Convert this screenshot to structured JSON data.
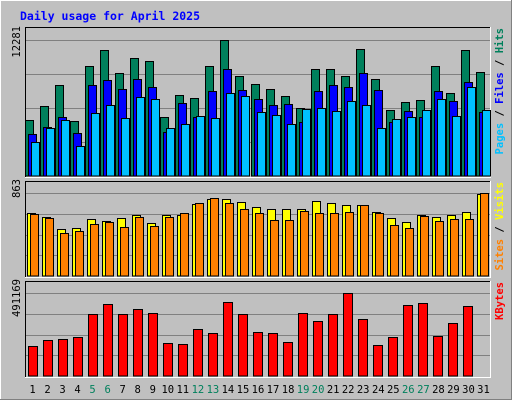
{
  "chart_data": {
    "type": "bar",
    "title": "Daily usage for April 2025",
    "colors": {
      "hits": "#00805c",
      "files": "#0000ff",
      "pages": "#00c0ff",
      "visits": "#ffff00",
      "sites": "#ff8000",
      "kbytes": "#ff0000",
      "weekend_label": "#00805c",
      "weekday_label": "#000000",
      "title": "#0000ff",
      "plot_bg": "#c0c0c0",
      "grid": "#808080"
    },
    "categories": [
      "1",
      "2",
      "3",
      "4",
      "5",
      "6",
      "7",
      "8",
      "9",
      "10",
      "11",
      "12",
      "13",
      "14",
      "15",
      "16",
      "17",
      "18",
      "19",
      "20",
      "21",
      "22",
      "23",
      "24",
      "25",
      "26",
      "27",
      "28",
      "29",
      "30",
      "31"
    ],
    "weekend_days": [
      "5",
      "6",
      "12",
      "13",
      "19",
      "20",
      "26",
      "27"
    ],
    "panels": [
      {
        "id": "requests",
        "side_labels": [
          {
            "text": "Pages",
            "color": "#00c0ff"
          },
          {
            "text": " / ",
            "color": "#000000"
          },
          {
            "text": "Files",
            "color": "#0000ff"
          },
          {
            "text": " / ",
            "color": "#000000"
          },
          {
            "text": "Hits",
            "color": "#00805c"
          }
        ],
        "max_label": "12281",
        "ymax": 12281,
        "series": [
          {
            "name": "Hits",
            "key": "hits",
            "values": [
              5100,
              6300,
              8200,
              5000,
              9900,
              11350,
              9300,
              10650,
              10350,
              5300,
              7300,
              7050,
              9900,
              12281,
              9000,
              8300,
              7900,
              7250,
              6150,
              9700,
              9700,
              9050,
              11450,
              8800,
              6000,
              6650,
              6900,
              9900,
              7450,
              11400,
              9350
            ]
          },
          {
            "name": "Files",
            "key": "files",
            "values": [
              3800,
              4400,
              5300,
              3900,
              8250,
              8700,
              7900,
              8750,
              8050,
              4000,
              6550,
              5300,
              7650,
              9700,
              7800,
              6950,
              6400,
              6500,
              4900,
              7700,
              8250,
              8000,
              9300,
              7800,
              4900,
              5900,
              5300,
              7650,
              6750,
              8500,
              5800
            ]
          },
          {
            "name": "Pages",
            "key": "pages",
            "values": [
              3050,
              4350,
              5050,
              2700,
              5700,
              6400,
              5200,
              7100,
              6950,
              4300,
              4700,
              5450,
              5250,
              7450,
              7250,
              5800,
              5550,
              4700,
              6050,
              6100,
              5900,
              6800,
              6450,
              4300,
              5150,
              5350,
              6000,
              6950,
              5400,
              8000,
              6000
            ]
          }
        ]
      },
      {
        "id": "visits",
        "side_labels": [
          {
            "text": "Sites",
            "color": "#ff8000"
          },
          {
            "text": " / ",
            "color": "#000000"
          },
          {
            "text": "Visits",
            "color": "#ffff00"
          }
        ],
        "max_label": "863",
        "ymax": 863,
        "series": [
          {
            "name": "Visits",
            "key": "visits",
            "values": [
              660,
              610,
              490,
              500,
              595,
              575,
              600,
              630,
              555,
              630,
              630,
              750,
              800,
              800,
              770,
              720,
              700,
              700,
              700,
              775,
              760,
              740,
              740,
              670,
              600,
              560,
              635,
              610,
              635,
              670,
              855
            ]
          },
          {
            "name": "Sites",
            "key": "sites",
            "values": [
              645,
              600,
              450,
              470,
              540,
              565,
              510,
              610,
              525,
              610,
              655,
              755,
              810,
              760,
              695,
              650,
              585,
              580,
              680,
              660,
              650,
              665,
              740,
              650,
              530,
              500,
              625,
              570,
              590,
              590,
              863
            ]
          }
        ]
      },
      {
        "id": "kbytes",
        "side_labels": [
          {
            "text": "KBytes",
            "color": "#ff0000"
          }
        ],
        "max_label": "491169",
        "ymax": 491169,
        "series": [
          {
            "name": "KBytes",
            "key": "kbytes",
            "values": [
              180000,
              213000,
              220000,
              228000,
              365000,
              425000,
              368000,
              398000,
              370000,
              198000,
              190000,
              279000,
              252000,
              435000,
              365000,
              262000,
              255000,
              200000,
              372000,
              328000,
              368000,
              491169,
              335000,
              186000,
              233000,
              422000,
              432000,
              235000,
              315000,
              412000,
              0
            ]
          }
        ]
      }
    ]
  }
}
